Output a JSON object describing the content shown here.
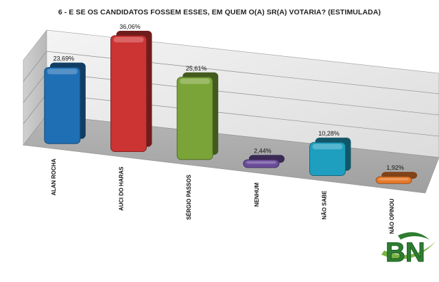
{
  "chart_data": {
    "type": "bar",
    "title": "6 - E SE OS CANDIDATOS FOSSEM ESSES, EM QUEM O(A) SR(A) VOTARIA? (ESTIMULADA)",
    "categories": [
      "ALAN ROCHA",
      "AUCI DO HARAS",
      "SÉRGIO PASSOS",
      "NENHUM",
      "NÃO SABE",
      "NÃO OPINOU"
    ],
    "values": [
      23.69,
      36.06,
      25.61,
      2.44,
      10.28,
      1.92
    ],
    "value_labels": [
      "23,69%",
      "36,06%",
      "25,61%",
      "2,44%",
      "10,28%",
      "1,92%"
    ],
    "colors": [
      "#1f6fb5",
      "#cc3333",
      "#7aa437",
      "#6a4c9a",
      "#1f9fbf",
      "#e8792a"
    ],
    "ylim": [
      0,
      40
    ],
    "grid": true,
    "style": "3d",
    "legend": "none"
  },
  "logo": {
    "text": "BN",
    "colors": [
      "#2e7d32",
      "#7cb342"
    ]
  }
}
